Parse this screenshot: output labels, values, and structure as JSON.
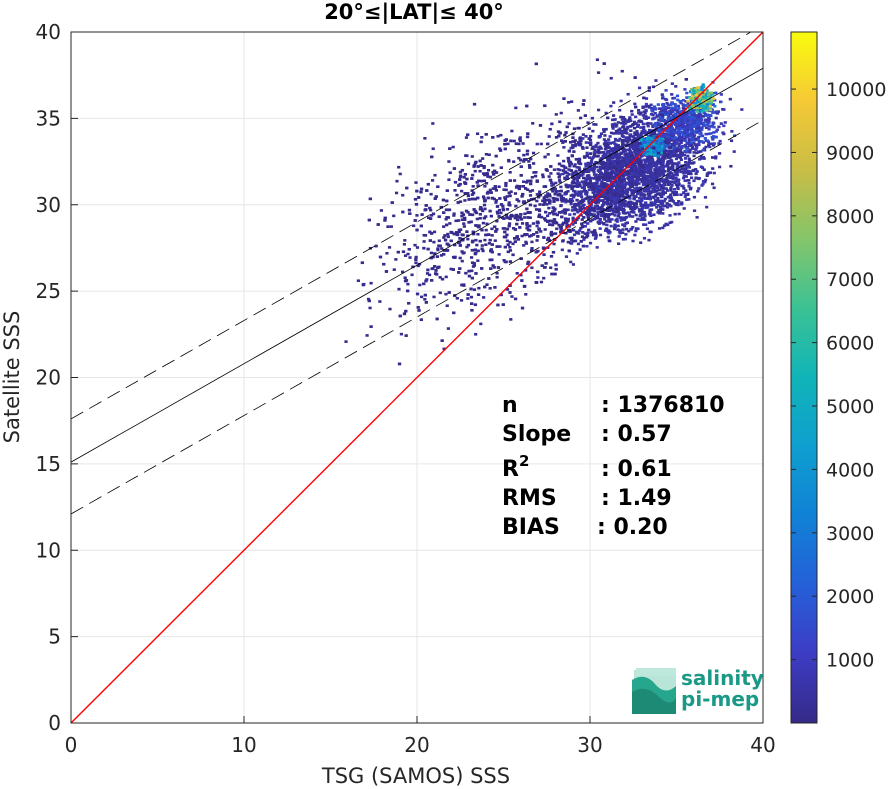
{
  "chart_data": {
    "type": "heatmap",
    "title": "20°≤|LAT|≤ 40°",
    "xlabel": "TSG (SAMOS) SSS",
    "ylabel": "Satellite SSS",
    "xlim": [
      0,
      40
    ],
    "ylim": [
      0,
      40
    ],
    "xticks": [
      0,
      10,
      20,
      30,
      40
    ],
    "yticks": [
      0,
      5,
      10,
      15,
      20,
      25,
      30,
      35,
      40
    ],
    "grid": true,
    "colormap": "parula",
    "colorbar": {
      "ticks": [
        1000,
        2000,
        3000,
        4000,
        5000,
        6000,
        7000,
        8000,
        9000,
        10000
      ],
      "range": [
        0,
        10900
      ]
    },
    "lines": [
      {
        "label": "1:1",
        "color": "#ff0000",
        "style": "solid",
        "intercept": 0,
        "slope": 1
      },
      {
        "label": "fit",
        "color": "#000000",
        "style": "solid",
        "intercept": 15.1,
        "slope": 0.57
      },
      {
        "label": "fit+",
        "color": "#000000",
        "style": "dashed",
        "intercept": 17.6,
        "slope": 0.57
      },
      {
        "label": "fit-",
        "color": "#000000",
        "style": "dashed",
        "intercept": 12.1,
        "slope": 0.57
      }
    ],
    "density_regions": [
      {
        "x_center": 32.5,
        "y_center": 32.0,
        "x_spread": 3.5,
        "y_spread": 2.8,
        "level": 600
      },
      {
        "x_center": 35.5,
        "y_center": 35.0,
        "x_spread": 1.6,
        "y_spread": 1.3,
        "level": 1600
      },
      {
        "x_center": 36.3,
        "y_center": 36.2,
        "x_spread": 0.5,
        "y_spread": 0.5,
        "level": 8000
      },
      {
        "x_center": 33.5,
        "y_center": 33.5,
        "x_spread": 0.5,
        "y_spread": 0.4,
        "level": 4500
      },
      {
        "x_center": 26.0,
        "y_center": 30.0,
        "x_spread": 7.0,
        "y_spread": 4.5,
        "level": 150
      }
    ]
  },
  "stats": {
    "n_label": "n",
    "n_value": ": 1376810",
    "slope_label": "Slope",
    "slope_value": ": 0.57",
    "r2_label": "R",
    "r2_sup": "2",
    "r2_value": ": 0.61",
    "rms_label": "RMS",
    "rms_value": ": 1.49",
    "bias_label": "BIAS",
    "bias_value": ": 0.20"
  },
  "logo": {
    "line1": "salinity",
    "line2": "pi-mep"
  }
}
